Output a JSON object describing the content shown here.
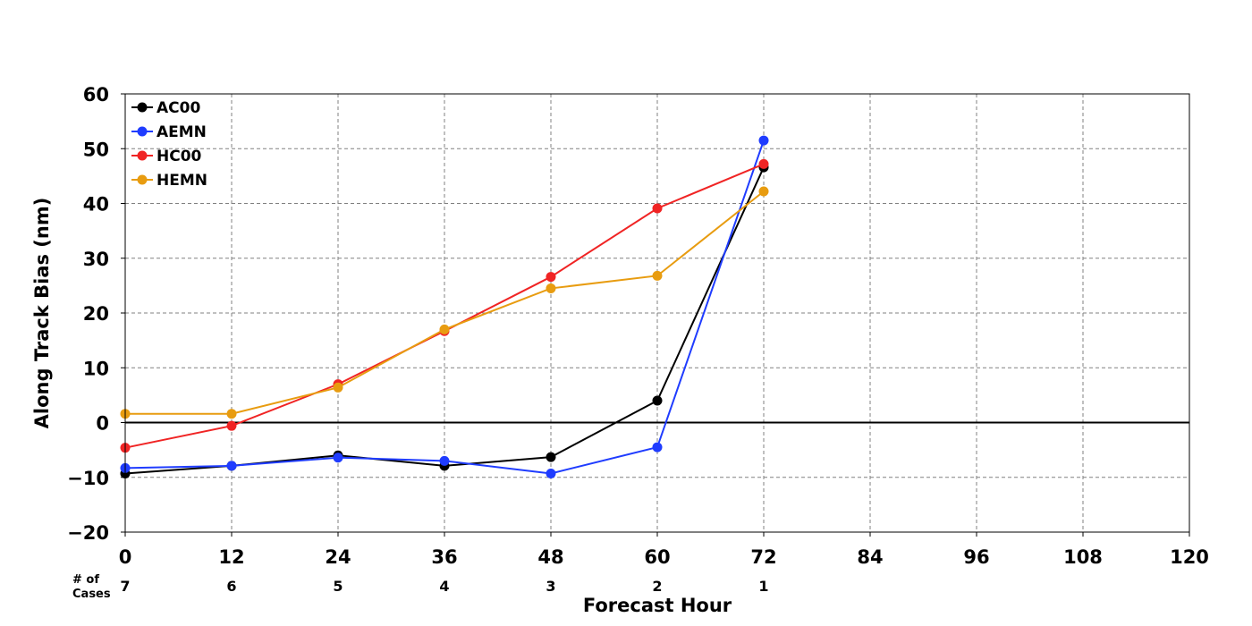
{
  "chart_data": {
    "type": "line",
    "title": "",
    "xlabel": "Forecast Hour",
    "ylabel": "Along Track Bias (nm)",
    "xlim": [
      0,
      120
    ],
    "ylim": [
      -20,
      60
    ],
    "xticks": [
      0,
      12,
      24,
      36,
      48,
      60,
      72,
      84,
      96,
      108,
      120
    ],
    "yticks": [
      -20,
      -10,
      0,
      10,
      20,
      30,
      40,
      50,
      60
    ],
    "grid": true,
    "legend_position": "top-left",
    "cases_label": "# of\nCases",
    "cases": [
      {
        "x": 0,
        "n": "7"
      },
      {
        "x": 12,
        "n": "6"
      },
      {
        "x": 24,
        "n": "5"
      },
      {
        "x": 36,
        "n": "4"
      },
      {
        "x": 48,
        "n": "3"
      },
      {
        "x": 60,
        "n": "2"
      },
      {
        "x": 72,
        "n": "1"
      }
    ],
    "x": [
      0,
      12,
      24,
      36,
      48,
      60,
      72
    ],
    "series": [
      {
        "name": "AC00",
        "color": "#000000",
        "values": [
          -9.3,
          -7.9,
          -6.0,
          -7.9,
          -6.3,
          4.0,
          46.6
        ]
      },
      {
        "name": "AEMN",
        "color": "#1f3cff",
        "values": [
          -8.3,
          -7.9,
          -6.4,
          -7.0,
          -9.3,
          -4.5,
          51.5
        ]
      },
      {
        "name": "HC00",
        "color": "#f02424",
        "values": [
          -4.6,
          -0.6,
          7.0,
          16.7,
          26.6,
          39.1,
          47.2
        ]
      },
      {
        "name": "HEMN",
        "color": "#e89c10",
        "values": [
          1.6,
          1.6,
          6.4,
          17.0,
          24.5,
          26.8,
          42.2
        ]
      }
    ]
  }
}
